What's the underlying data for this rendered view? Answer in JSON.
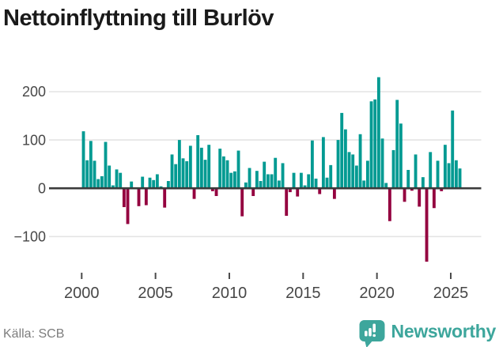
{
  "page": {
    "title_text": "Nettoinflyttning till Burlöv",
    "source_label": "Källa: SCB",
    "brand_name": "Newsworthy"
  },
  "chart_data": {
    "type": "bar",
    "title": "Nettoinflyttning till Burlöv",
    "source": "Källa: SCB",
    "frequency": "quarterly",
    "start_period": "2000Q1",
    "end_period": "2025Q3",
    "values": [
      118,
      58,
      98,
      57,
      19,
      25,
      96,
      47,
      6,
      39,
      32,
      -39,
      -74,
      14,
      0,
      -37,
      24,
      -35,
      22,
      17,
      29,
      4,
      -40,
      15,
      70,
      50,
      100,
      62,
      56,
      88,
      -22,
      110,
      84,
      59,
      90,
      -6,
      -16,
      82,
      66,
      58,
      32,
      35,
      78,
      -58,
      12,
      42,
      -16,
      36,
      15,
      55,
      29,
      29,
      63,
      16,
      52,
      -57,
      -8,
      32,
      -17,
      32,
      6,
      29,
      99,
      20,
      -12,
      106,
      22,
      48,
      -22,
      100,
      156,
      122,
      75,
      70,
      47,
      112,
      16,
      57,
      180,
      184,
      230,
      103,
      11,
      -68,
      79,
      183,
      134,
      -28,
      38,
      -5,
      70,
      -38,
      23,
      -152,
      75,
      -41,
      57,
      -6,
      90,
      52,
      161,
      58,
      41
    ],
    "x_tick_labels": [
      "2000",
      "2005",
      "2010",
      "2015",
      "2020",
      "2025"
    ],
    "x_tick_years": [
      2000,
      2005,
      2010,
      2015,
      2020,
      2025
    ],
    "y_tick_labels": [
      "200",
      "100",
      "0",
      "−100"
    ],
    "y_tick_values": [
      200,
      100,
      0,
      -100
    ],
    "ylim": [
      -170,
      245
    ],
    "grid": true,
    "legend": "none",
    "colors": {
      "positive": "#009a92",
      "negative": "#94003f",
      "grid": "#e4e4e4",
      "axis": "#3b3b3b",
      "tick_text": "#474747",
      "brand": "#3da69c"
    }
  }
}
